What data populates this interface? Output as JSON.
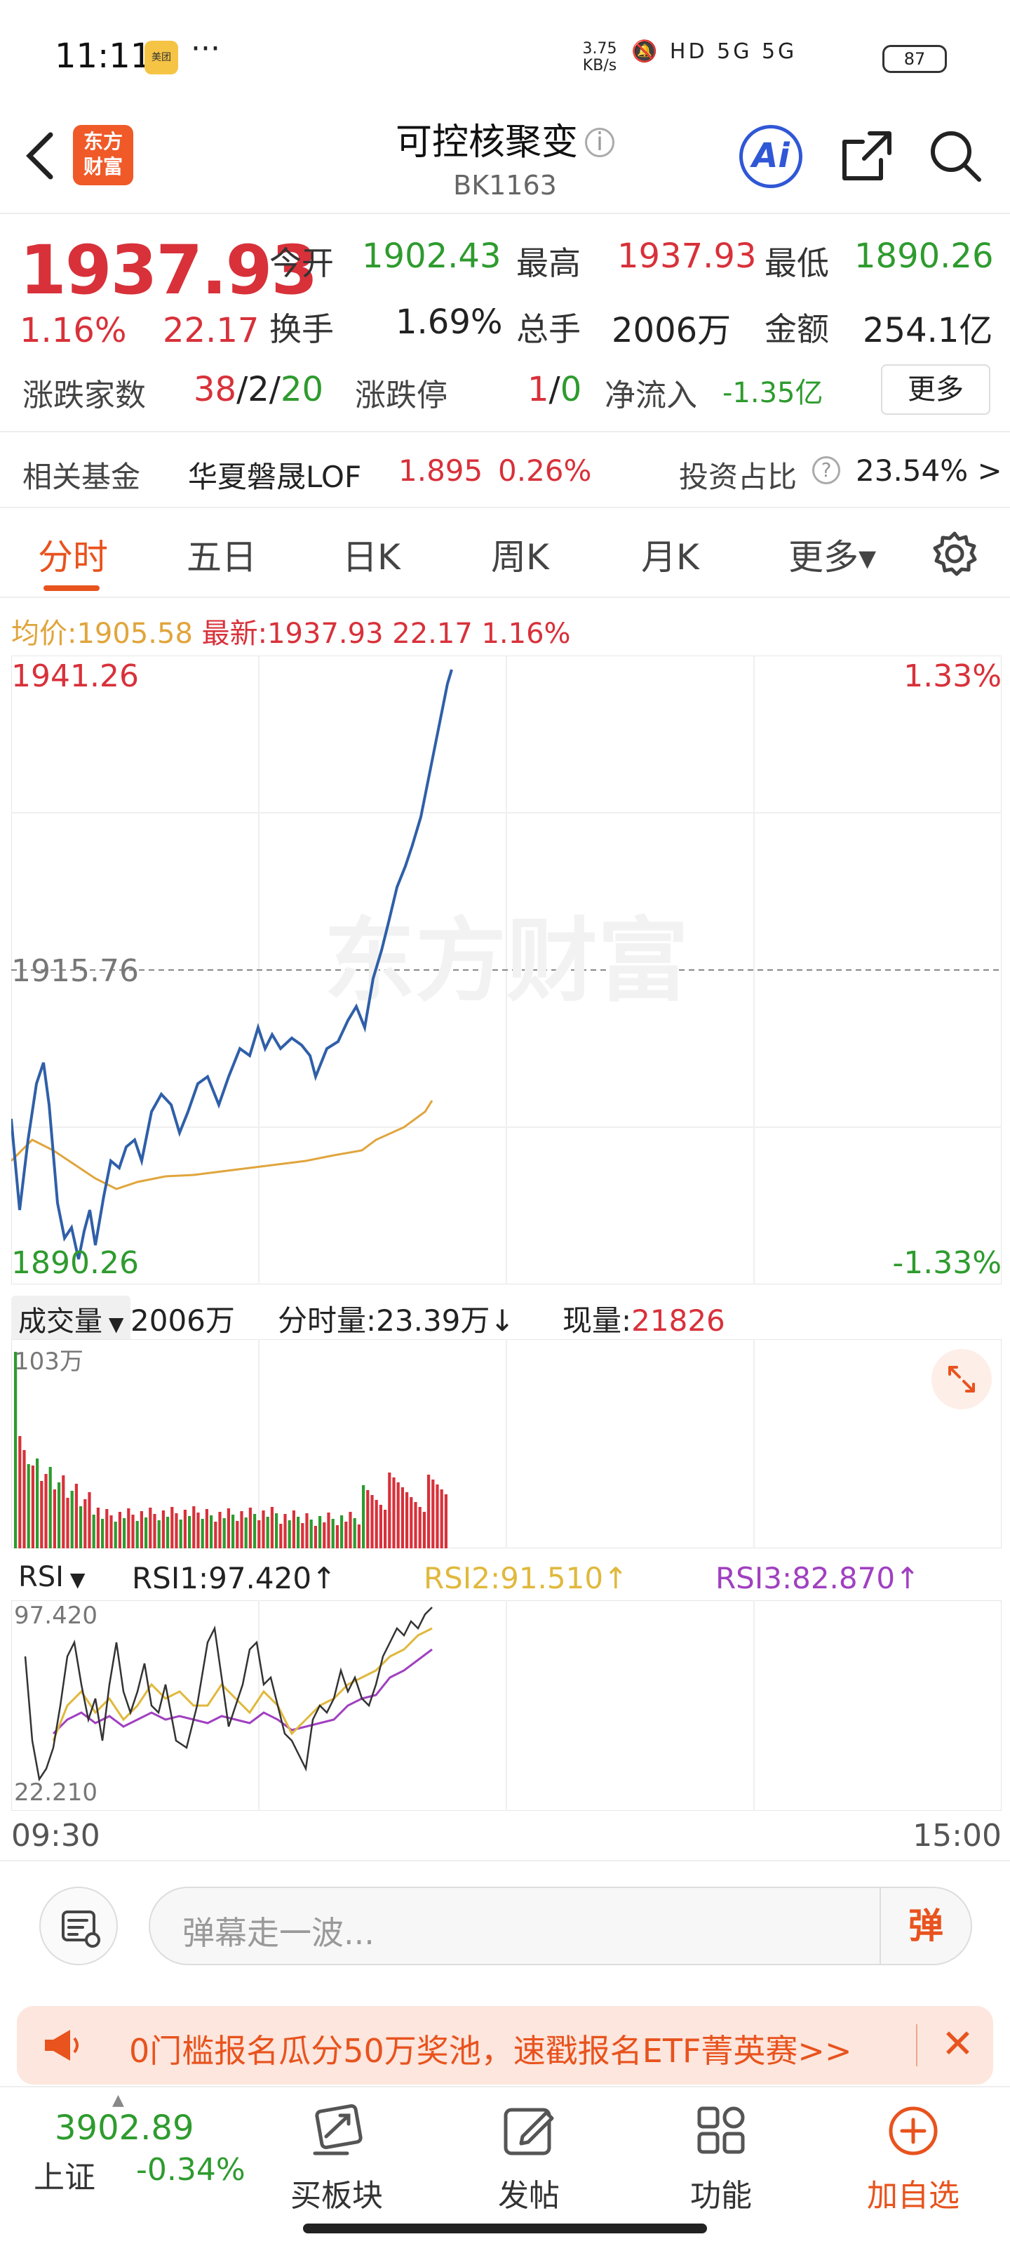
{
  "status_bar": {
    "time": "11:11",
    "app_badge": "美团",
    "more": "···",
    "net_speed_value": "3.75",
    "net_speed_unit": "KB/s",
    "signal_icons": "HD 5G 5G",
    "battery": "87"
  },
  "header": {
    "back_icon": "chevron-left-icon",
    "logo_line1": "东方",
    "logo_line2": "财富",
    "title": "可控核聚变",
    "info_icon": "i",
    "code": "BK1163",
    "ai_label": "Ai"
  },
  "quote": {
    "price": "1937.93",
    "change_pct": "1.16%",
    "change": "22.17",
    "open_label": "今开",
    "open": "1902.43",
    "high_label": "最高",
    "high": "1937.93",
    "low_label": "最低",
    "low": "1890.26",
    "turnover_label": "换手",
    "turnover": "1.69%",
    "volume_label": "总手",
    "volume": "2006万",
    "amount_label": "金额",
    "amount": "254.1亿",
    "breadth_label": "涨跌家数",
    "breadth_up": "38",
    "breadth_flat": "2",
    "breadth_down": "20",
    "breadth_sep": "/",
    "limit_label": "涨跌停",
    "limit_up": "1",
    "limit_down": "0",
    "flow_label": "净流入",
    "flow": "-1.35亿",
    "more_button": "更多"
  },
  "fund": {
    "label": "相关基金",
    "name": "华夏磐晟LOF",
    "price": "1.895",
    "pct": "0.26%",
    "ratio_label": "投资占比",
    "ratio_help": "?",
    "ratio": "23.54% >"
  },
  "tabs": [
    {
      "label": "分时"
    },
    {
      "label": "五日"
    },
    {
      "label": "日K"
    },
    {
      "label": "周K"
    },
    {
      "label": "月K"
    },
    {
      "label": "更多▾"
    }
  ],
  "info_line": {
    "avg_label": "均价:",
    "avg": "1905.58",
    "last_label": "最新:",
    "last": "1937.93",
    "chg": "22.17",
    "pct": "1.16%"
  },
  "main_chart": {
    "top_price": "1941.26",
    "mid_price": "1915.76",
    "bottom_price": "1890.26",
    "top_pct": "1.33%",
    "bottom_pct": "-1.33%",
    "watermark": "东方财富"
  },
  "volume_bar": {
    "selector": "成交量",
    "total": "2006万",
    "minute_label": "分时量:",
    "minute": "23.39万",
    "minute_arrow": "↓",
    "current_label": "现量:",
    "current": "21826",
    "max_label": "103万"
  },
  "rsi_bar": {
    "selector": "RSI",
    "rsi1": "RSI1:97.420",
    "rsi2": "RSI2:91.510",
    "rsi3": "RSI3:82.870",
    "arrow": "↑",
    "top": "97.420",
    "bottom": "22.210"
  },
  "time_axis": {
    "start": "09:30",
    "end": "15:00"
  },
  "comment_bar": {
    "placeholder": "弹幕走一波...",
    "danmu_label": "弹"
  },
  "promo": {
    "text": "0门槛报名瓜分50万奖池，速戳报名ETF菁英赛>>",
    "close": "✕"
  },
  "bottom_nav": {
    "index_value": "3902.89",
    "index_name": "上证",
    "index_pct": "-0.34%",
    "items": [
      {
        "label": "买板块",
        "icon": "cart-icon"
      },
      {
        "label": "发帖",
        "icon": "edit-icon"
      },
      {
        "label": "功能",
        "icon": "grid-icon"
      },
      {
        "label": "加自选",
        "icon": "plus-circle-icon"
      }
    ]
  },
  "colors": {
    "up": "#d8313a",
    "down": "#2e9b2e",
    "accent": "#e8531e",
    "avg_line": "#e0a53c",
    "price_line": "#2f5fa8",
    "rsi2": "#e0b83c",
    "rsi3": "#a040c0"
  }
}
